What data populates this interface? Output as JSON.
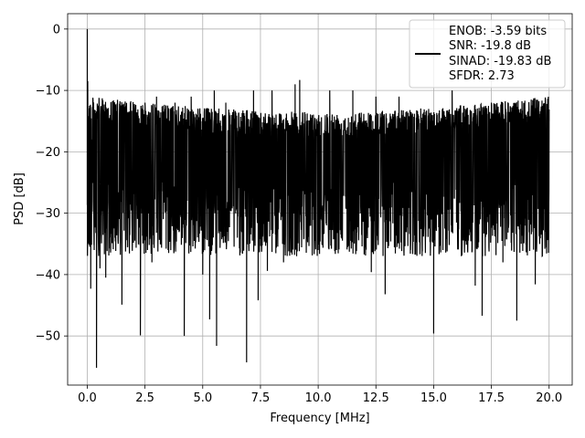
{
  "chart_data": {
    "type": "line",
    "title": "",
    "xlabel": "Frequency [MHz]",
    "ylabel": "PSD [dB]",
    "xlim": [
      -0.85,
      21.0
    ],
    "ylim": [
      -58,
      2.5
    ],
    "xticks": [
      0.0,
      2.5,
      5.0,
      7.5,
      10.0,
      12.5,
      15.0,
      17.5,
      20.0
    ],
    "xtick_labels": [
      "0.0",
      "2.5",
      "5.0",
      "7.5",
      "10.0",
      "12.5",
      "15.0",
      "17.5",
      "20.0"
    ],
    "yticks": [
      0,
      -10,
      -20,
      -30,
      -40,
      -50
    ],
    "ytick_labels": [
      "0",
      "−10",
      "−20",
      "−30",
      "−40",
      "−50"
    ],
    "grid": true,
    "legend_position": "top-right",
    "line_color": "#000000",
    "legend": {
      "lines": [
        "ENOB: -3.59 bits",
        "SNR: -19.8 dB",
        "SINAD: -19.83 dB",
        "SFDR: 2.73"
      ]
    },
    "series": [
      {
        "x_range": [
          0,
          20
        ],
        "noise_floor_db": -21,
        "noise_peaks_db": [
          -8,
          -12
        ],
        "points": [
          [
            0.0,
            0.0
          ],
          [
            0.02,
            -8.5
          ],
          [
            0.05,
            -24
          ],
          [
            0.1,
            -14
          ],
          [
            0.15,
            -42.3
          ],
          [
            0.2,
            -18
          ],
          [
            0.3,
            -36
          ],
          [
            0.4,
            -55.2
          ],
          [
            0.5,
            -28
          ],
          [
            0.55,
            -39
          ],
          [
            0.6,
            -17
          ],
          [
            0.8,
            -40.5
          ],
          [
            1.0,
            -15
          ],
          [
            1.2,
            -34
          ],
          [
            1.5,
            -44.9
          ],
          [
            1.8,
            -14
          ],
          [
            2.0,
            -33
          ],
          [
            2.3,
            -49.9
          ],
          [
            2.5,
            -12
          ],
          [
            2.8,
            -38
          ],
          [
            3.0,
            -11
          ],
          [
            3.2,
            -33
          ],
          [
            3.5,
            -36
          ],
          [
            3.8,
            -12
          ],
          [
            4.2,
            -50.0
          ],
          [
            4.5,
            -11
          ],
          [
            5.0,
            -40
          ],
          [
            5.3,
            -47.3
          ],
          [
            5.5,
            -10
          ],
          [
            5.6,
            -51.6
          ],
          [
            6.0,
            -12
          ],
          [
            6.5,
            -34
          ],
          [
            6.9,
            -54.3
          ],
          [
            7.2,
            -10
          ],
          [
            7.4,
            -44.2
          ],
          [
            7.8,
            -39.4
          ],
          [
            8.0,
            -10
          ],
          [
            8.5,
            -38
          ],
          [
            9.0,
            -9
          ],
          [
            9.2,
            -8.3
          ],
          [
            9.5,
            -32
          ],
          [
            10.0,
            -36
          ],
          [
            10.5,
            -10
          ],
          [
            11.0,
            -34
          ],
          [
            11.5,
            -10
          ],
          [
            11.9,
            -35.4
          ],
          [
            12.3,
            -39.6
          ],
          [
            12.5,
            -11
          ],
          [
            12.9,
            -43.2
          ],
          [
            13.5,
            -11
          ],
          [
            14.0,
            -36
          ],
          [
            14.5,
            -33
          ],
          [
            15.0,
            -49.6
          ],
          [
            15.4,
            -36
          ],
          [
            15.8,
            -10
          ],
          [
            16.2,
            -37
          ],
          [
            16.8,
            -41.8
          ],
          [
            17.1,
            -46.7
          ],
          [
            17.5,
            -12
          ],
          [
            18.0,
            -38
          ],
          [
            18.6,
            -47.5
          ],
          [
            19.0,
            -14
          ],
          [
            19.4,
            -41.6
          ],
          [
            19.7,
            -37
          ],
          [
            20.0,
            -15
          ]
        ]
      }
    ]
  }
}
